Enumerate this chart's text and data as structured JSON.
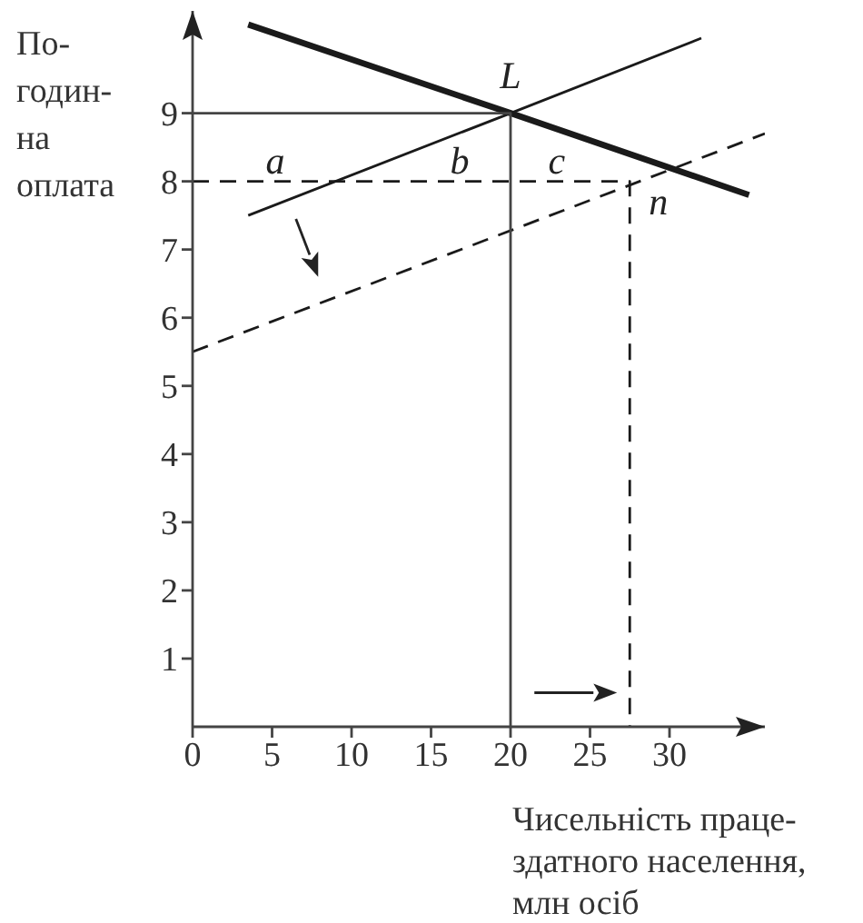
{
  "chart_data": {
    "type": "line",
    "ylabel": "По-\nгодин-\nна\nоплата",
    "xlabel": "Чисельність праце-\nздатного населення,\nмлн осіб",
    "xlim": [
      0,
      36
    ],
    "ylim": [
      0,
      10.5
    ],
    "xticks": [
      0,
      5,
      10,
      15,
      20,
      25,
      30
    ],
    "yticks": [
      1,
      2,
      3,
      4,
      5,
      6,
      7,
      8,
      9
    ],
    "marker": "none",
    "series": [
      {
        "color": "#1a1a1a",
        "x": [
          3.5,
          20,
          35
        ],
        "values": [
          10.3,
          9,
          7.8
        ]
      },
      {
        "color": "#1a1a1a",
        "x": [
          3.5,
          20,
          32
        ],
        "values": [
          7.5,
          9,
          10.1
        ]
      },
      {
        "color": "#1a1a1a",
        "line_style": "dashed",
        "x": [
          0,
          36
        ],
        "values": [
          5.5,
          8.7
        ]
      },
      {
        "color": "#444444",
        "x": [
          0,
          20,
          20
        ],
        "values": [
          9,
          9,
          0
        ]
      },
      {
        "color": "#1a1a1a",
        "line_style": "dashed",
        "x": [
          0,
          27.5,
          27.5
        ],
        "values": [
          8,
          8,
          0
        ]
      }
    ],
    "annotations": [
      "L",
      "a",
      "b",
      "c",
      "n"
    ]
  }
}
